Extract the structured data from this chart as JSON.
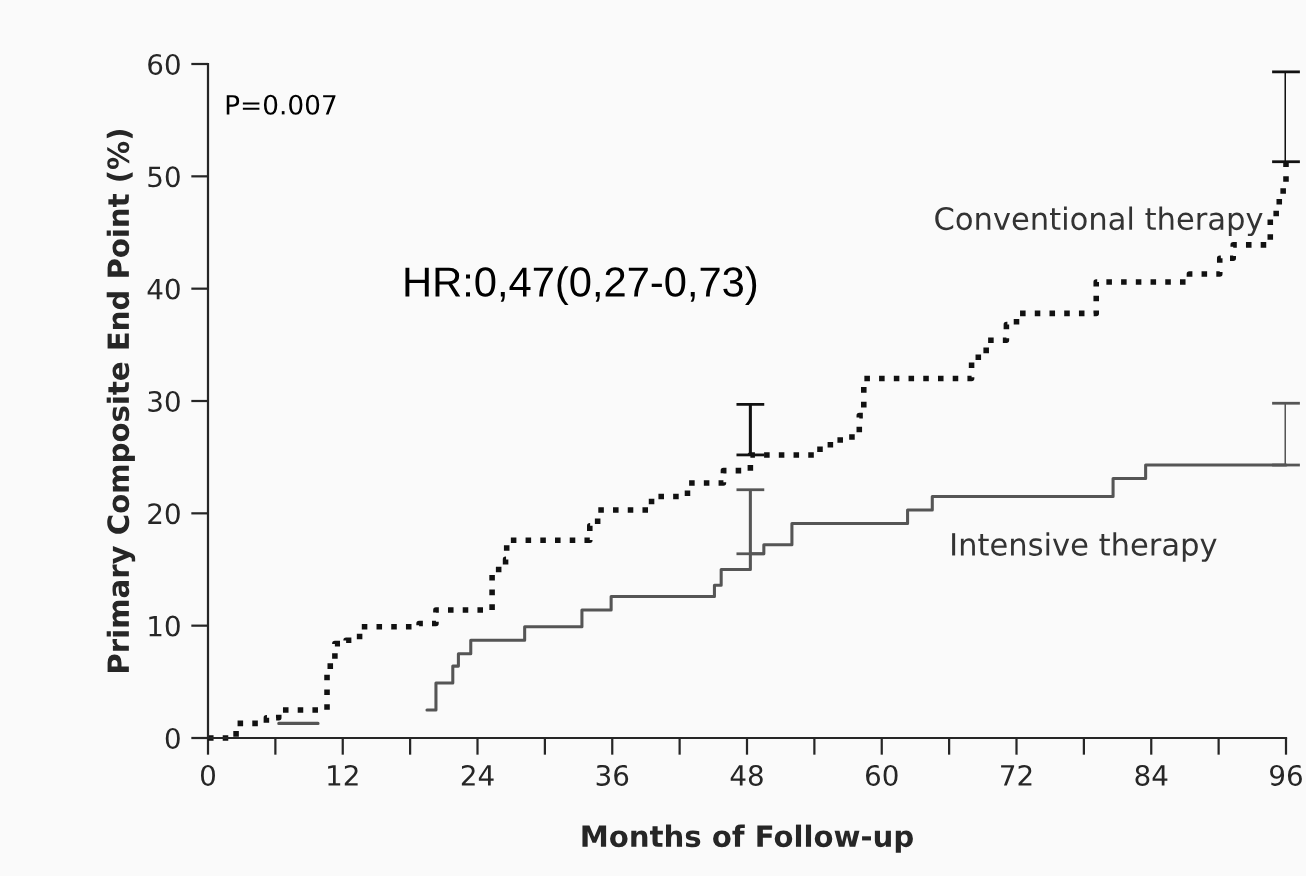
{
  "chart_data": {
    "type": "step",
    "xlabel": "Months of Follow-up",
    "ylabel": "Primary Composite End Point (%)",
    "annotations": [
      "P=0.007",
      "HR:0,47(0,27-0,73)"
    ],
    "series": [
      {
        "name": "Conventional therapy",
        "color": "#111111",
        "line_style": "dotted",
        "x": [
          0,
          1,
          2.5,
          5.2,
          6.3,
          10.6,
          11.3,
          12.3,
          13.5,
          18.8,
          20.3,
          25.3,
          26.5,
          26.6,
          34,
          34.7,
          39.5,
          42.7,
          45.9,
          48.3,
          54.5,
          56.3,
          58,
          58.4,
          66.7,
          68,
          69.3,
          71.1,
          72,
          79.1,
          87.4,
          90.1,
          91.3,
          94.6,
          95.4,
          96
        ],
        "values": [
          0,
          0,
          1.3,
          1.8,
          2.5,
          6.4,
          8.4,
          8.7,
          9.9,
          10.2,
          11.4,
          15,
          15.9,
          17.6,
          18.9,
          20.3,
          21.5,
          22.7,
          23.8,
          25.2,
          26.1,
          26.8,
          28.7,
          32,
          32,
          33.9,
          35.4,
          36.8,
          37.8,
          40.6,
          41.3,
          42.7,
          43.9,
          46.7,
          48.7,
          51.3
        ],
        "errors": [
          null,
          null,
          null,
          null,
          null,
          null,
          null,
          null,
          null,
          null,
          null,
          null,
          null,
          null,
          null,
          null,
          null,
          null,
          null,
          [
            25.2,
            29.7
          ],
          null,
          null,
          null,
          null,
          null,
          null,
          null,
          null,
          null,
          null,
          null,
          null,
          null,
          null,
          null,
          [
            51.3,
            59.3
          ]
        ]
      },
      {
        "name": "Intensive therapy",
        "color": "#555555",
        "line_style": "solid",
        "x": [
          6.3,
          9.7,
          9.8,
          19.5,
          20.3,
          21.8,
          22.3,
          23.4,
          28.2,
          33.3,
          35.9,
          45.1,
          45.7,
          48.3,
          49.5,
          52,
          62.3,
          64.5,
          80.6,
          83.5,
          96
        ],
        "values": [
          1.3,
          1.3,
          null,
          2.5,
          4.9,
          6.4,
          7.5,
          8.7,
          9.9,
          11.4,
          12.6,
          13.6,
          15,
          16.4,
          17.2,
          19.1,
          20.3,
          21.5,
          23.1,
          24.3,
          24.3
        ],
        "errors": [
          null,
          null,
          null,
          null,
          null,
          null,
          null,
          null,
          null,
          null,
          null,
          null,
          null,
          [
            16.4,
            22.1
          ],
          null,
          null,
          null,
          null,
          null,
          null,
          [
            24.3,
            29.8
          ]
        ]
      }
    ],
    "xlim": [
      0,
      96
    ],
    "xticks": [
      0,
      {
        "value": 6,
        "label": null
      },
      12,
      {
        "value": 18,
        "label": null
      },
      24,
      {
        "value": 30,
        "label": null
      },
      36,
      {
        "value": 42,
        "label": null
      },
      48,
      {
        "value": 54,
        "label": null
      },
      60,
      {
        "value": 66,
        "label": null
      },
      72,
      {
        "value": 78,
        "label": null
      },
      84,
      {
        "value": 90,
        "label": null
      },
      96
    ],
    "ylim": [
      0,
      60
    ],
    "yticks": [
      0,
      10,
      20,
      30,
      40,
      50,
      60
    ],
    "grid": false,
    "legend": false,
    "marker": "none"
  }
}
